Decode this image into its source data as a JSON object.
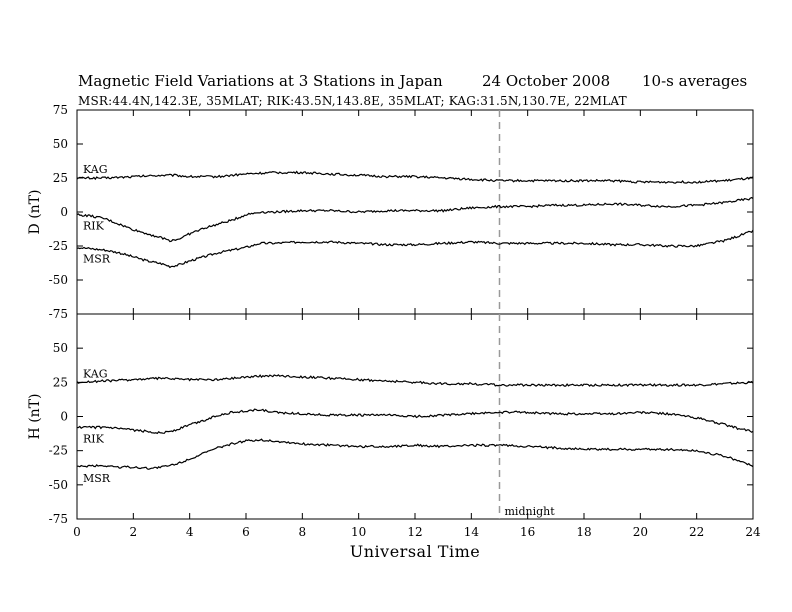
{
  "header": {
    "title": "Magnetic Field Variations at 3 Stations in Japan",
    "date": "24 October 2008",
    "averaging": "10-s averages",
    "stations": "MSR:44.4N,142.3E, 35MLAT;  RIK:43.5N,143.8E, 35MLAT;  KAG:31.5N,130.7E, 22MLAT"
  },
  "chart_data": [
    {
      "type": "line",
      "panel": "top",
      "ylabel": "D (nT)",
      "xlabel": "",
      "xlim": [
        0,
        24
      ],
      "ylim": [
        -75,
        75
      ],
      "yticks": [
        75,
        50,
        25,
        0,
        -25,
        -50,
        -75
      ],
      "xticks": [
        0,
        2,
        4,
        6,
        8,
        10,
        12,
        14,
        16,
        18,
        20,
        22,
        24
      ],
      "marker": {
        "x": 15,
        "label": ""
      },
      "series": [
        {
          "name": "KAG",
          "x": [
            0,
            1,
            2,
            3,
            3.5,
            4,
            5,
            6,
            7,
            8,
            9,
            10,
            11,
            12,
            13,
            14,
            15,
            16,
            17,
            18,
            19,
            20,
            21,
            22,
            23,
            24
          ],
          "values": [
            25,
            25,
            26,
            27,
            27,
            26,
            26,
            28,
            29,
            29,
            28,
            27,
            26,
            26,
            25,
            24,
            23,
            23,
            23,
            23,
            23,
            22,
            22,
            22,
            23,
            25
          ]
        },
        {
          "name": "RIK",
          "x": [
            0,
            0.5,
            1,
            1.5,
            2,
            2.5,
            3,
            3.3,
            3.6,
            4,
            4.5,
            5,
            5.5,
            6,
            6.5,
            7,
            8,
            9,
            10,
            11,
            12,
            13,
            14,
            15,
            16,
            17,
            18,
            19,
            20,
            21,
            22,
            23,
            24
          ],
          "values": [
            -2,
            -3,
            -5,
            -9,
            -13,
            -16,
            -19,
            -21,
            -20,
            -16,
            -12,
            -9,
            -6,
            -2,
            0,
            0,
            1,
            1,
            0,
            1,
            1,
            1,
            3,
            4,
            4,
            5,
            5,
            6,
            5,
            4,
            5,
            7,
            10
          ]
        },
        {
          "name": "MSR",
          "x": [
            0,
            0.5,
            1,
            1.5,
            2,
            2.5,
            3,
            3.3,
            3.6,
            4,
            4.5,
            5,
            5.5,
            6,
            6.5,
            7,
            8,
            9,
            10,
            11,
            12,
            13,
            14,
            15,
            16,
            17,
            18,
            19,
            20,
            21,
            22,
            23,
            24
          ],
          "values": [
            -26,
            -27,
            -28,
            -30,
            -33,
            -36,
            -38,
            -40,
            -39,
            -36,
            -33,
            -30,
            -28,
            -26,
            -23,
            -23,
            -22,
            -22,
            -23,
            -24,
            -24,
            -23,
            -22,
            -23,
            -23,
            -23,
            -23,
            -24,
            -24,
            -25,
            -25,
            -21,
            -14
          ]
        }
      ]
    },
    {
      "type": "line",
      "panel": "bottom",
      "ylabel": "H (nT)",
      "xlabel": "Universal Time",
      "xlim": [
        0,
        24
      ],
      "ylim": [
        -75,
        75
      ],
      "yticks": [
        75,
        50,
        25,
        0,
        -25,
        -50,
        -75
      ],
      "xticks": [
        0,
        2,
        4,
        6,
        8,
        10,
        12,
        14,
        16,
        18,
        20,
        22,
        24
      ],
      "marker": {
        "x": 15,
        "label": "midnight"
      },
      "series": [
        {
          "name": "KAG",
          "x": [
            0,
            1,
            2,
            3,
            4,
            5,
            6,
            7,
            8,
            9,
            10,
            11,
            12,
            13,
            14,
            15,
            16,
            17,
            18,
            19,
            20,
            21,
            22,
            23,
            24
          ],
          "values": [
            25,
            26,
            27,
            28,
            27,
            27,
            29,
            30,
            29,
            28,
            27,
            26,
            25,
            24,
            24,
            23,
            23,
            23,
            23,
            23,
            23,
            23,
            23,
            24,
            25
          ]
        },
        {
          "name": "RIK",
          "x": [
            0,
            0.5,
            1,
            1.5,
            2,
            2.5,
            3,
            3.5,
            4,
            4.5,
            5,
            5.5,
            6,
            6.5,
            7,
            8,
            9,
            10,
            11,
            12,
            13,
            14,
            15,
            16,
            17,
            18,
            19,
            20,
            21,
            22,
            23,
            23.5,
            24
          ],
          "values": [
            -8,
            -8,
            -8,
            -9,
            -10,
            -11,
            -12,
            -10,
            -6,
            -3,
            1,
            3,
            4,
            5,
            3,
            2,
            1,
            1,
            1,
            0,
            1,
            2,
            3,
            3,
            2,
            2,
            2,
            3,
            2,
            -1,
            -6,
            -9,
            -11
          ]
        },
        {
          "name": "MSR",
          "x": [
            0,
            0.5,
            1,
            1.5,
            2,
            2.5,
            3,
            3.5,
            4,
            4.5,
            5,
            5.5,
            6,
            6.5,
            7,
            8,
            9,
            10,
            11,
            12,
            13,
            14,
            15,
            16,
            17,
            18,
            19,
            20,
            21,
            22,
            23,
            24
          ],
          "values": [
            -37,
            -36,
            -36,
            -37,
            -37,
            -38,
            -37,
            -35,
            -31,
            -27,
            -23,
            -20,
            -18,
            -17,
            -18,
            -20,
            -21,
            -22,
            -22,
            -21,
            -22,
            -21,
            -21,
            -22,
            -23,
            -24,
            -24,
            -24,
            -24,
            -25,
            -29,
            -36
          ]
        }
      ]
    }
  ]
}
